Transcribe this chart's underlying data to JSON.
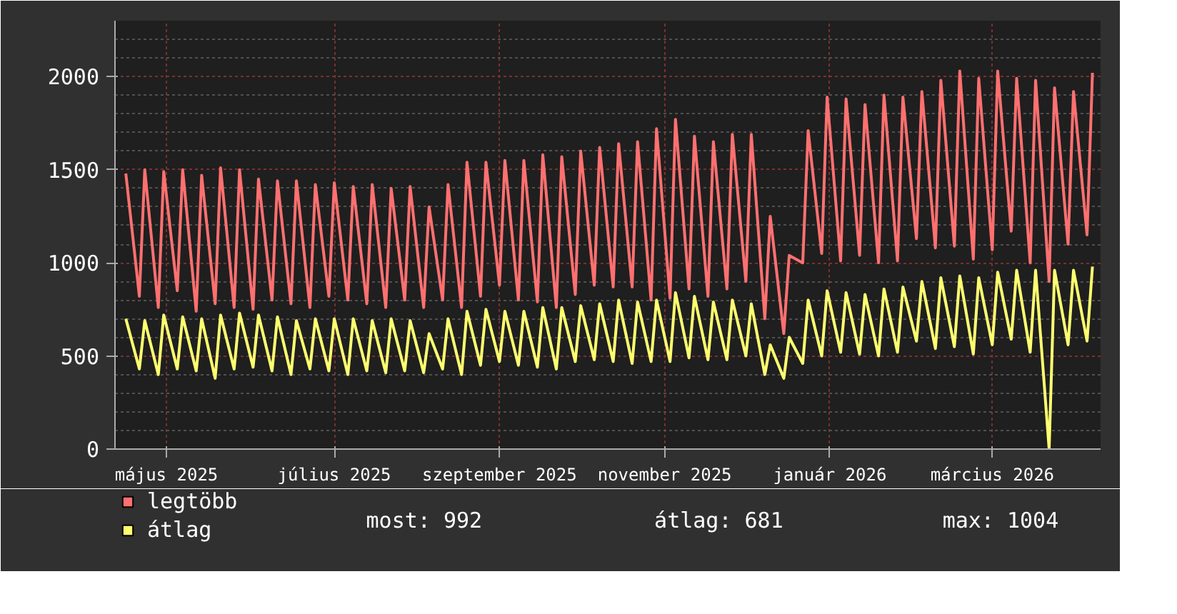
{
  "chart_data": {
    "type": "line",
    "x": [
      "2025-04-29",
      "2025-05-04",
      "2025-05-06",
      "2025-05-11",
      "2025-05-13",
      "2025-05-18",
      "2025-05-20",
      "2025-05-25",
      "2025-05-27",
      "2025-06-01",
      "2025-06-03",
      "2025-06-08",
      "2025-06-10",
      "2025-06-15",
      "2025-06-17",
      "2025-06-22",
      "2025-06-24",
      "2025-06-29",
      "2025-07-01",
      "2025-07-06",
      "2025-07-08",
      "2025-07-13",
      "2025-07-15",
      "2025-07-20",
      "2025-07-22",
      "2025-07-27",
      "2025-07-29",
      "2025-08-03",
      "2025-08-05",
      "2025-08-10",
      "2025-08-12",
      "2025-08-17",
      "2025-08-19",
      "2025-08-24",
      "2025-08-26",
      "2025-08-31",
      "2025-09-02",
      "2025-09-07",
      "2025-09-09",
      "2025-09-14",
      "2025-09-16",
      "2025-09-21",
      "2025-09-23",
      "2025-09-28",
      "2025-09-30",
      "2025-10-05",
      "2025-10-07",
      "2025-10-12",
      "2025-10-14",
      "2025-10-19",
      "2025-10-21",
      "2025-10-26",
      "2025-10-28",
      "2025-11-02",
      "2025-11-04",
      "2025-11-09",
      "2025-11-11",
      "2025-11-16",
      "2025-11-18",
      "2025-11-23",
      "2025-11-25",
      "2025-11-30",
      "2025-12-02",
      "2025-12-07",
      "2025-12-09",
      "2025-12-14",
      "2025-12-16",
      "2025-12-21",
      "2025-12-23",
      "2025-12-28",
      "2025-12-30",
      "2026-01-04",
      "2026-01-06",
      "2026-01-11",
      "2026-01-13",
      "2026-01-18",
      "2026-01-20",
      "2026-01-25",
      "2026-01-27",
      "2026-02-01",
      "2026-02-03",
      "2026-02-08",
      "2026-02-10",
      "2026-02-15",
      "2026-02-17",
      "2026-02-22",
      "2026-02-24",
      "2026-03-01",
      "2026-03-03",
      "2026-03-08",
      "2026-03-10",
      "2026-03-15",
      "2026-03-17",
      "2026-03-22",
      "2026-03-24",
      "2026-03-29",
      "2026-03-31",
      "2026-04-05",
      "2026-04-07",
      "2026-04-12",
      "2026-04-14",
      "2026-04-19",
      "2026-04-21"
    ],
    "series": [
      {
        "name": "legtöbb",
        "color": "#ff7070",
        "values": [
          1480,
          820,
          1500,
          760,
          1490,
          850,
          1500,
          740,
          1470,
          780,
          1510,
          760,
          1500,
          750,
          1450,
          800,
          1440,
          780,
          1440,
          760,
          1420,
          820,
          1430,
          800,
          1410,
          780,
          1420,
          760,
          1400,
          800,
          1410,
          760,
          1300,
          800,
          1420,
          760,
          1540,
          820,
          1540,
          880,
          1550,
          800,
          1550,
          790,
          1580,
          760,
          1570,
          830,
          1600,
          880,
          1620,
          870,
          1640,
          870,
          1650,
          800,
          1720,
          810,
          1770,
          860,
          1680,
          820,
          1650,
          860,
          1690,
          900,
          1690,
          700,
          1250,
          620,
          1040,
          1000,
          1710,
          1050,
          1890,
          1010,
          1880,
          1040,
          1850,
          1000,
          1900,
          1010,
          1890,
          1130,
          1920,
          1080,
          1980,
          1090,
          2030,
          1020,
          1990,
          1070,
          2030,
          1170,
          1990,
          1000,
          1980,
          900,
          1940,
          1100,
          1920,
          1150,
          2020
        ]
      },
      {
        "name": "átlag",
        "color": "#ffff70",
        "values": [
          700,
          430,
          690,
          400,
          720,
          430,
          710,
          420,
          700,
          380,
          720,
          430,
          730,
          440,
          720,
          420,
          710,
          400,
          690,
          430,
          700,
          420,
          700,
          400,
          700,
          420,
          690,
          410,
          700,
          420,
          690,
          410,
          620,
          430,
          700,
          400,
          740,
          450,
          750,
          470,
          740,
          450,
          740,
          440,
          760,
          430,
          760,
          470,
          770,
          480,
          780,
          470,
          800,
          460,
          790,
          470,
          800,
          470,
          840,
          490,
          820,
          480,
          790,
          480,
          800,
          500,
          780,
          400,
          560,
          380,
          600,
          460,
          800,
          500,
          850,
          520,
          840,
          510,
          830,
          500,
          860,
          520,
          870,
          580,
          900,
          540,
          920,
          550,
          930,
          510,
          920,
          560,
          950,
          590,
          960,
          520,
          960,
          0,
          960,
          560,
          960,
          580,
          980
        ]
      }
    ],
    "xlim": [
      "2025-04-25",
      "2026-04-24"
    ],
    "xticks": [
      {
        "value": "2025-05-14",
        "label": "május 2025"
      },
      {
        "value": "2025-07-15",
        "label": "július 2025"
      },
      {
        "value": "2025-09-14",
        "label": "szeptember 2025"
      },
      {
        "value": "2025-11-14",
        "label": "november 2025"
      },
      {
        "value": "2026-01-14",
        "label": "január 2026"
      },
      {
        "value": "2026-03-15",
        "label": "március 2026"
      }
    ],
    "ylim": [
      0,
      2300
    ],
    "yticks": [
      0,
      500,
      1000,
      1500,
      2000
    ],
    "grid": true,
    "legend": "bottom",
    "annotations": [
      "most: 992",
      "átlag: 681",
      "max: 1004"
    ]
  }
}
